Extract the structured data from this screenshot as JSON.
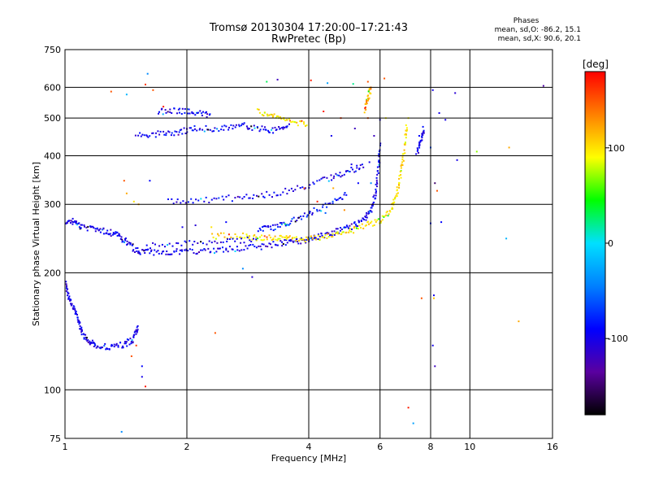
{
  "chart_data": {
    "type": "scatter",
    "title": "Tromsø 20130304 17:20:00–17:21:43",
    "subtitle": "RwPretec (Bp)",
    "xlabel": "Frequency [MHz]",
    "ylabel": "Stationary phase Virtual Height [km]",
    "x_scale": "log",
    "y_scale": "log",
    "xlim": [
      1,
      16
    ],
    "ylim": [
      75,
      750
    ],
    "x_ticks": [
      1,
      2,
      4,
      6,
      8,
      10,
      16
    ],
    "x_tick_labels": [
      "1",
      "2",
      "4",
      "6",
      "8",
      "10",
      "16"
    ],
    "y_ticks": [
      75,
      100,
      200,
      300,
      400,
      500,
      600,
      750
    ],
    "y_tick_labels": [
      "75",
      "100",
      "200",
      "300",
      "400",
      "500",
      "600",
      "750"
    ],
    "grid": true,
    "colorbar": {
      "label": "[deg]",
      "range": [
        -180,
        180
      ],
      "ticks": [
        100,
        0,
        -100
      ],
      "tick_labels": [
        "100",
        "0",
        "-100"
      ],
      "stops": [
        "#000000",
        "#5a00a0",
        "#0000ff",
        "#0080ff",
        "#00e0ff",
        "#00ff00",
        "#ffff00",
        "#ff8000",
        "#ff0000"
      ]
    },
    "annotations": {
      "phases_title": "Phases",
      "stats_o": "mean, sd,O: -86.2, 15.1",
      "stats_x": "mean, sd,X:  90.6, 20.1"
    },
    "traces": [
      {
        "points": [
          [
            1.0,
            265
          ],
          [
            1.05,
            272
          ],
          [
            1.1,
            262
          ],
          [
            1.2,
            258
          ],
          [
            1.28,
            255
          ],
          [
            1.35,
            250
          ],
          [
            1.42,
            240
          ],
          [
            1.5,
            228
          ],
          [
            1.6,
            226
          ],
          [
            1.8,
            226
          ],
          [
            2.0,
            227
          ],
          [
            2.3,
            228
          ],
          [
            2.6,
            230
          ],
          [
            3.0,
            233
          ],
          [
            3.4,
            238
          ],
          [
            3.7,
            241
          ],
          [
            4.0,
            244
          ],
          [
            4.3,
            249
          ],
          [
            4.7,
            256
          ],
          [
            5.1,
            263
          ],
          [
            5.5,
            275
          ],
          [
            5.7,
            290
          ],
          [
            5.85,
            320
          ],
          [
            5.95,
            370
          ],
          [
            6.0,
            430
          ]
        ],
        "phase": -100
      },
      {
        "points": [
          [
            2.3,
            248
          ],
          [
            2.7,
            250
          ],
          [
            3.0,
            245
          ],
          [
            3.3,
            247
          ],
          [
            3.6,
            245
          ],
          [
            4.0,
            244
          ],
          [
            4.5,
            248
          ],
          [
            5.0,
            255
          ],
          [
            5.5,
            265
          ],
          [
            6.0,
            272
          ],
          [
            6.4,
            290
          ],
          [
            6.6,
            320
          ],
          [
            6.75,
            360
          ],
          [
            6.9,
            420
          ],
          [
            7.0,
            485
          ]
        ],
        "phase": 100
      },
      {
        "points": [
          [
            1.0,
            192
          ],
          [
            1.02,
            175
          ],
          [
            1.05,
            162
          ],
          [
            1.08,
            150
          ],
          [
            1.1,
            140
          ],
          [
            1.15,
            133
          ],
          [
            1.2,
            130
          ],
          [
            1.3,
            129
          ],
          [
            1.4,
            131
          ],
          [
            1.48,
            135
          ],
          [
            1.52,
            145
          ]
        ],
        "phase": -100
      },
      {
        "points": [
          [
            1.5,
            450
          ],
          [
            1.7,
            455
          ],
          [
            1.9,
            460
          ],
          [
            2.1,
            470
          ],
          [
            2.4,
            468
          ],
          [
            2.7,
            480
          ],
          [
            3.0,
            470
          ],
          [
            3.3,
            465
          ],
          [
            3.6,
            475
          ]
        ],
        "phase": -95
      },
      {
        "points": [
          [
            1.7,
            520
          ],
          [
            1.9,
            522
          ],
          [
            2.1,
            515
          ],
          [
            2.3,
            510
          ]
        ],
        "phase": -95
      },
      {
        "points": [
          [
            1.8,
            305
          ],
          [
            2.2,
            308
          ],
          [
            2.7,
            312
          ],
          [
            3.2,
            318
          ],
          [
            3.8,
            330
          ],
          [
            4.5,
            350
          ],
          [
            5.0,
            365
          ],
          [
            5.5,
            375
          ]
        ],
        "phase": -100
      },
      {
        "points": [
          [
            1.6,
            235
          ],
          [
            2.0,
            238
          ],
          [
            2.5,
            242
          ],
          [
            3.0,
            243
          ]
        ],
        "phase": -100
      },
      {
        "points": [
          [
            3.0,
            258
          ],
          [
            3.3,
            262
          ],
          [
            3.6,
            270
          ],
          [
            4.0,
            285
          ],
          [
            4.5,
            300
          ],
          [
            5.0,
            320
          ]
        ],
        "phase": -90
      },
      {
        "points": [
          [
            3.0,
            520
          ],
          [
            3.3,
            505
          ],
          [
            3.6,
            490
          ],
          [
            4.0,
            480
          ]
        ],
        "phase": 100
      },
      {
        "points": [
          [
            5.5,
            520
          ],
          [
            5.6,
            560
          ],
          [
            5.7,
            600
          ]
        ],
        "phase": 120
      },
      {
        "points": [
          [
            7.4,
            410
          ],
          [
            7.6,
            440
          ],
          [
            7.7,
            470
          ]
        ],
        "phase": -100
      }
    ],
    "scatter_points": [
      [
        1.6,
        650,
        -40
      ],
      [
        1.3,
        585,
        150
      ],
      [
        1.42,
        575,
        -20
      ],
      [
        1.65,
        590,
        150
      ],
      [
        3.15,
        620,
        30
      ],
      [
        3.35,
        628,
        -120
      ],
      [
        4.05,
        625,
        170
      ],
      [
        4.45,
        615,
        -30
      ],
      [
        5.15,
        612,
        20
      ],
      [
        5.6,
        620,
        150
      ],
      [
        6.15,
        632,
        150
      ],
      [
        7.05,
        500,
        90
      ],
      [
        7.5,
        450,
        -90
      ],
      [
        8.1,
        590,
        -100
      ],
      [
        8.4,
        515,
        -100
      ],
      [
        8.7,
        495,
        -100
      ],
      [
        9.2,
        580,
        -110
      ],
      [
        9.3,
        390,
        -100
      ],
      [
        8.0,
        420,
        -60
      ],
      [
        10.4,
        410,
        70
      ],
      [
        12.5,
        420,
        120
      ],
      [
        15.2,
        605,
        -130
      ],
      [
        8.2,
        340,
        -150
      ],
      [
        8.3,
        325,
        150
      ],
      [
        8.0,
        268,
        -80
      ],
      [
        8.5,
        270,
        -90
      ],
      [
        12.3,
        245,
        -20
      ],
      [
        6.0,
        495,
        -100
      ],
      [
        6.2,
        500,
        90
      ],
      [
        5.8,
        450,
        -120
      ],
      [
        1.58,
        610,
        160
      ],
      [
        1.75,
        535,
        170
      ],
      [
        1.4,
        345,
        150
      ],
      [
        1.42,
        320,
        120
      ],
      [
        1.52,
        300,
        120
      ],
      [
        1.62,
        345,
        -90
      ],
      [
        1.48,
        305,
        100
      ],
      [
        1.95,
        262,
        -100
      ],
      [
        2.1,
        265,
        -110
      ],
      [
        2.3,
        262,
        100
      ],
      [
        2.5,
        270,
        -90
      ],
      [
        2.75,
        205,
        -40
      ],
      [
        2.9,
        195,
        -110
      ],
      [
        2.35,
        140,
        150
      ],
      [
        1.58,
        102,
        170
      ],
      [
        1.55,
        108,
        -100
      ],
      [
        1.55,
        115,
        -90
      ],
      [
        1.38,
        78,
        -40
      ],
      [
        7.05,
        90,
        170
      ],
      [
        7.25,
        82,
        -30
      ],
      [
        7.6,
        172,
        150
      ],
      [
        8.15,
        175,
        -100
      ],
      [
        8.2,
        115,
        -120
      ],
      [
        8.1,
        130,
        -100
      ],
      [
        8.15,
        172,
        110
      ],
      [
        13.2,
        150,
        120
      ],
      [
        1.5,
        130,
        160
      ],
      [
        1.46,
        122,
        150
      ],
      [
        3.9,
        330,
        150
      ],
      [
        4.2,
        305,
        170
      ],
      [
        4.4,
        285,
        -60
      ],
      [
        4.6,
        330,
        120
      ],
      [
        4.9,
        290,
        130
      ],
      [
        5.3,
        340,
        -90
      ],
      [
        5.1,
        380,
        -100
      ],
      [
        5.7,
        340,
        -40
      ],
      [
        5.65,
        385,
        -100
      ],
      [
        5.2,
        470,
        -120
      ],
      [
        4.8,
        500,
        160
      ],
      [
        4.55,
        450,
        -100
      ],
      [
        4.35,
        520,
        170
      ],
      [
        5.6,
        500,
        150
      ]
    ]
  }
}
